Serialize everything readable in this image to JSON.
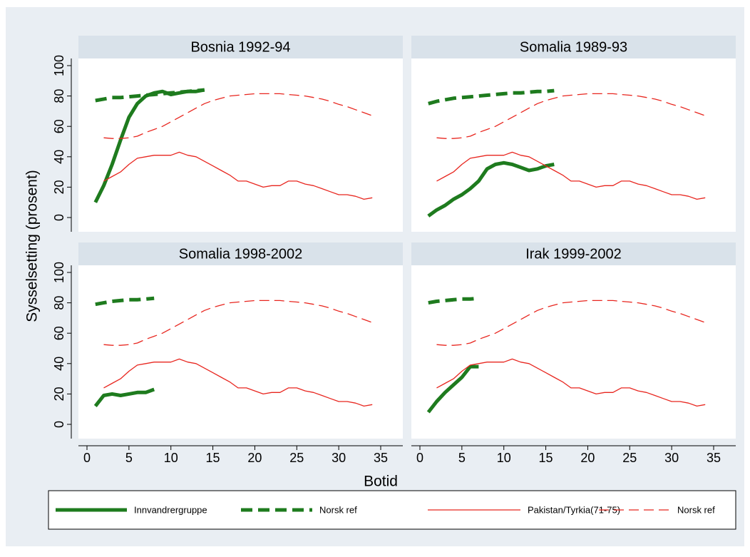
{
  "chart_data": {
    "type": "line",
    "xlabel": "Botid",
    "ylabel": "Sysselsetting (prosent)",
    "xlim": [
      0,
      35
    ],
    "ylim": [
      0,
      100
    ],
    "xticks": [
      0,
      5,
      10,
      15,
      20,
      25,
      30,
      35
    ],
    "yticks": [
      0,
      20,
      40,
      60,
      80,
      100
    ],
    "panels": [
      {
        "title": "Bosnia 1992-94",
        "series": [
          {
            "name": "Innvandrergruppe",
            "color": "#1e7b1e",
            "width": 5,
            "dash": false,
            "x": [
              1,
              2,
              3,
              4,
              5,
              6,
              7,
              8,
              9,
              10,
              11,
              12,
              13,
              14
            ],
            "values": [
              10,
              21,
              35,
              51,
              66,
              75,
              80,
              82,
              83,
              81,
              82,
              83,
              83,
              84
            ]
          },
          {
            "name": "Norsk ref",
            "color": "#1e7b1e",
            "width": 5,
            "dash": true,
            "x": [
              1,
              2,
              3,
              4,
              5,
              6,
              7,
              8,
              9,
              10,
              11,
              12,
              13,
              14
            ],
            "values": [
              77,
              78,
              79,
              79,
              79.5,
              80,
              80.5,
              81,
              81.5,
              82,
              82.5,
              83,
              83.5,
              84
            ]
          },
          {
            "name": "Pakistan/Tyrkia(71-75)",
            "color": "#e8261f",
            "width": 1.3,
            "dash": false,
            "x": [
              2,
              3,
              4,
              5,
              6,
              7,
              8,
              9,
              10,
              11,
              12,
              13,
              14,
              15,
              16,
              17,
              18,
              19,
              20,
              21,
              22,
              23,
              24,
              25,
              26,
              27,
              28,
              29,
              30,
              31,
              32,
              33,
              34
            ],
            "values": [
              24,
              27,
              30,
              35,
              39,
              40,
              41,
              41,
              41,
              43,
              41,
              40,
              37,
              34,
              31,
              28,
              24,
              24,
              22,
              20,
              21,
              21,
              24,
              24,
              22,
              21,
              19,
              17,
              15,
              15,
              14,
              12,
              13
            ]
          },
          {
            "name": "Norsk ref",
            "color": "#e8261f",
            "width": 1.3,
            "dash": true,
            "x": [
              2,
              3,
              4,
              5,
              6,
              7,
              8,
              9,
              10,
              11,
              12,
              13,
              14,
              15,
              16,
              17,
              18,
              19,
              20,
              21,
              22,
              23,
              24,
              25,
              26,
              27,
              28,
              29,
              30,
              31,
              32,
              33,
              34
            ],
            "values": [
              52.5,
              52,
              52,
              52.5,
              53.5,
              56,
              58,
              60,
              63,
              66,
              69,
              72,
              75,
              77,
              78.5,
              80,
              80.5,
              81,
              81.5,
              81.5,
              81.5,
              81.5,
              81,
              80.5,
              80,
              79,
              78,
              76.5,
              74.5,
              73,
              71,
              69,
              67
            ]
          }
        ]
      },
      {
        "title": "Somalia 1989-93",
        "series": [
          {
            "name": "Innvandrergruppe",
            "color": "#1e7b1e",
            "width": 5,
            "dash": false,
            "x": [
              1,
              2,
              3,
              4,
              5,
              6,
              7,
              8,
              9,
              10,
              11,
              12,
              13,
              14,
              15,
              16
            ],
            "values": [
              1,
              5,
              8,
              12,
              15,
              19,
              24,
              32,
              35,
              36,
              35,
              33,
              31,
              32,
              34,
              35
            ]
          },
          {
            "name": "Norsk ref",
            "color": "#1e7b1e",
            "width": 5,
            "dash": true,
            "x": [
              1,
              2,
              3,
              4,
              5,
              6,
              7,
              8,
              9,
              10,
              11,
              12,
              13,
              14,
              15,
              16
            ],
            "values": [
              75,
              76.5,
              77.5,
              78.5,
              79,
              79.5,
              80,
              80.5,
              81,
              81.5,
              82,
              82,
              82.5,
              83,
              83,
              83.5
            ]
          },
          {
            "name": "Pakistan/Tyrkia(71-75)",
            "color": "#e8261f",
            "width": 1.3,
            "dash": false,
            "x": [
              2,
              3,
              4,
              5,
              6,
              7,
              8,
              9,
              10,
              11,
              12,
              13,
              14,
              15,
              16,
              17,
              18,
              19,
              20,
              21,
              22,
              23,
              24,
              25,
              26,
              27,
              28,
              29,
              30,
              31,
              32,
              33,
              34
            ],
            "values": [
              24,
              27,
              30,
              35,
              39,
              40,
              41,
              41,
              41,
              43,
              41,
              40,
              37,
              34,
              31,
              28,
              24,
              24,
              22,
              20,
              21,
              21,
              24,
              24,
              22,
              21,
              19,
              17,
              15,
              15,
              14,
              12,
              13
            ]
          },
          {
            "name": "Norsk ref",
            "color": "#e8261f",
            "width": 1.3,
            "dash": true,
            "x": [
              2,
              3,
              4,
              5,
              6,
              7,
              8,
              9,
              10,
              11,
              12,
              13,
              14,
              15,
              16,
              17,
              18,
              19,
              20,
              21,
              22,
              23,
              24,
              25,
              26,
              27,
              28,
              29,
              30,
              31,
              32,
              33,
              34
            ],
            "values": [
              52.5,
              52,
              52,
              52.5,
              53.5,
              56,
              58,
              60,
              63,
              66,
              69,
              72,
              75,
              77,
              78.5,
              80,
              80.5,
              81,
              81.5,
              81.5,
              81.5,
              81.5,
              81,
              80.5,
              80,
              79,
              78,
              76.5,
              74.5,
              73,
              71,
              69,
              67
            ]
          }
        ]
      },
      {
        "title": "Somalia 1998-2002",
        "series": [
          {
            "name": "Innvandrergruppe",
            "color": "#1e7b1e",
            "width": 5,
            "dash": false,
            "x": [
              1,
              2,
              3,
              4,
              5,
              6,
              7,
              8
            ],
            "values": [
              12,
              19,
              20,
              19,
              20,
              21,
              21,
              23
            ]
          },
          {
            "name": "Norsk ref",
            "color": "#1e7b1e",
            "width": 5,
            "dash": true,
            "x": [
              1,
              2,
              3,
              4,
              5,
              6,
              7,
              8
            ],
            "values": [
              79,
              80,
              81,
              81.5,
              82,
              82,
              82.5,
              83
            ]
          },
          {
            "name": "Pakistan/Tyrkia(71-75)",
            "color": "#e8261f",
            "width": 1.3,
            "dash": false,
            "x": [
              2,
              3,
              4,
              5,
              6,
              7,
              8,
              9,
              10,
              11,
              12,
              13,
              14,
              15,
              16,
              17,
              18,
              19,
              20,
              21,
              22,
              23,
              24,
              25,
              26,
              27,
              28,
              29,
              30,
              31,
              32,
              33,
              34
            ],
            "values": [
              24,
              27,
              30,
              35,
              39,
              40,
              41,
              41,
              41,
              43,
              41,
              40,
              37,
              34,
              31,
              28,
              24,
              24,
              22,
              20,
              21,
              21,
              24,
              24,
              22,
              21,
              19,
              17,
              15,
              15,
              14,
              12,
              13
            ]
          },
          {
            "name": "Norsk ref",
            "color": "#e8261f",
            "width": 1.3,
            "dash": true,
            "x": [
              2,
              3,
              4,
              5,
              6,
              7,
              8,
              9,
              10,
              11,
              12,
              13,
              14,
              15,
              16,
              17,
              18,
              19,
              20,
              21,
              22,
              23,
              24,
              25,
              26,
              27,
              28,
              29,
              30,
              31,
              32,
              33,
              34
            ],
            "values": [
              52.5,
              52,
              52,
              52.5,
              53.5,
              56,
              58,
              60,
              63,
              66,
              69,
              72,
              75,
              77,
              78.5,
              80,
              80.5,
              81,
              81.5,
              81.5,
              81.5,
              81.5,
              81,
              80.5,
              80,
              79,
              78,
              76.5,
              74.5,
              73,
              71,
              69,
              67
            ]
          }
        ]
      },
      {
        "title": "Irak 1999-2002",
        "series": [
          {
            "name": "Innvandrergruppe",
            "color": "#1e7b1e",
            "width": 5,
            "dash": false,
            "x": [
              1,
              2,
              3,
              4,
              5,
              6,
              7
            ],
            "values": [
              8,
              15,
              21,
              26,
              31,
              38,
              38
            ]
          },
          {
            "name": "Norsk ref",
            "color": "#1e7b1e",
            "width": 5,
            "dash": true,
            "x": [
              1,
              2,
              3,
              4,
              5,
              6,
              7
            ],
            "values": [
              80,
              81,
              81.5,
              82,
              82.5,
              82.5,
              83
            ]
          },
          {
            "name": "Pakistan/Tyrkia(71-75)",
            "color": "#e8261f",
            "width": 1.3,
            "dash": false,
            "x": [
              2,
              3,
              4,
              5,
              6,
              7,
              8,
              9,
              10,
              11,
              12,
              13,
              14,
              15,
              16,
              17,
              18,
              19,
              20,
              21,
              22,
              23,
              24,
              25,
              26,
              27,
              28,
              29,
              30,
              31,
              32,
              33,
              34
            ],
            "values": [
              24,
              27,
              30,
              35,
              39,
              40,
              41,
              41,
              41,
              43,
              41,
              40,
              37,
              34,
              31,
              28,
              24,
              24,
              22,
              20,
              21,
              21,
              24,
              24,
              22,
              21,
              19,
              17,
              15,
              15,
              14,
              12,
              13
            ]
          },
          {
            "name": "Norsk ref",
            "color": "#e8261f",
            "width": 1.3,
            "dash": true,
            "x": [
              2,
              3,
              4,
              5,
              6,
              7,
              8,
              9,
              10,
              11,
              12,
              13,
              14,
              15,
              16,
              17,
              18,
              19,
              20,
              21,
              22,
              23,
              24,
              25,
              26,
              27,
              28,
              29,
              30,
              31,
              32,
              33,
              34
            ],
            "values": [
              52.5,
              52,
              52,
              52.5,
              53.5,
              56,
              58,
              60,
              63,
              66,
              69,
              72,
              75,
              77,
              78.5,
              80,
              80.5,
              81,
              81.5,
              81.5,
              81.5,
              81.5,
              81,
              80.5,
              80,
              79,
              78,
              76.5,
              74.5,
              73,
              71,
              69,
              67
            ]
          }
        ]
      }
    ]
  }
}
